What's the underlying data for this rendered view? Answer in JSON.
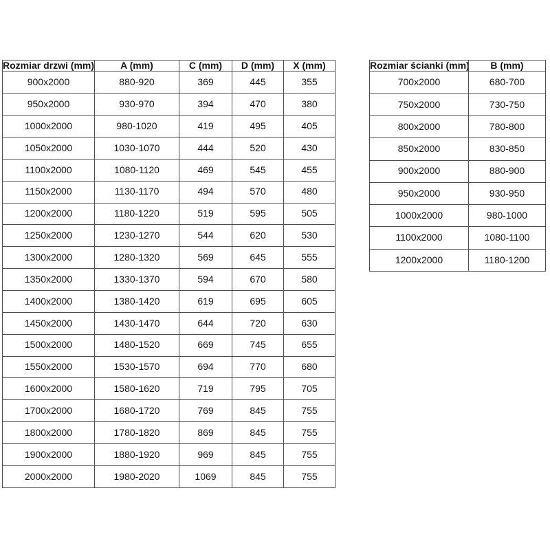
{
  "page": {
    "background_color": "#ffffff",
    "text_color": "#161616",
    "border_color": "#4d4d4d"
  },
  "door_table": {
    "headers": [
      "Rozmiar drzwi (mm)",
      "A (mm)",
      "C (mm)",
      "D (mm)",
      "X (mm)"
    ],
    "rows": [
      [
        "900x2000",
        "880-920",
        "369",
        "445",
        "355"
      ],
      [
        "950x2000",
        "930-970",
        "394",
        "470",
        "380"
      ],
      [
        "1000x2000",
        "980-1020",
        "419",
        "495",
        "405"
      ],
      [
        "1050x2000",
        "1030-1070",
        "444",
        "520",
        "430"
      ],
      [
        "1100x2000",
        "1080-1120",
        "469",
        "545",
        "455"
      ],
      [
        "1150x2000",
        "1130-1170",
        "494",
        "570",
        "480"
      ],
      [
        "1200x2000",
        "1180-1220",
        "519",
        "595",
        "505"
      ],
      [
        "1250x2000",
        "1230-1270",
        "544",
        "620",
        "530"
      ],
      [
        "1300x2000",
        "1280-1320",
        "569",
        "645",
        "555"
      ],
      [
        "1350x2000",
        "1330-1370",
        "594",
        "670",
        "580"
      ],
      [
        "1400x2000",
        "1380-1420",
        "619",
        "695",
        "605"
      ],
      [
        "1450x2000",
        "1430-1470",
        "644",
        "720",
        "630"
      ],
      [
        "1500x2000",
        "1480-1520",
        "669",
        "745",
        "655"
      ],
      [
        "1550x2000",
        "1530-1570",
        "694",
        "770",
        "680"
      ],
      [
        "1600x2000",
        "1580-1620",
        "719",
        "795",
        "705"
      ],
      [
        "1700x2000",
        "1680-1720",
        "769",
        "845",
        "755"
      ],
      [
        "1800x2000",
        "1780-1820",
        "869",
        "845",
        "755"
      ],
      [
        "1900x2000",
        "1880-1920",
        "969",
        "845",
        "755"
      ],
      [
        "2000x2000",
        "1980-2020",
        "1069",
        "845",
        "755"
      ]
    ]
  },
  "wall_table": {
    "headers": [
      "Rozmiar ścianki (mm)",
      "B (mm)"
    ],
    "rows": [
      [
        "700x2000",
        "680-700"
      ],
      [
        "750x2000",
        "730-750"
      ],
      [
        "800x2000",
        "780-800"
      ],
      [
        "850x2000",
        "830-850"
      ],
      [
        "900x2000",
        "880-900"
      ],
      [
        "950x2000",
        "930-950"
      ],
      [
        "1000x2000",
        "980-1000"
      ],
      [
        "1100x2000",
        "1080-1100"
      ],
      [
        "1200x2000",
        "1180-1200"
      ]
    ]
  }
}
